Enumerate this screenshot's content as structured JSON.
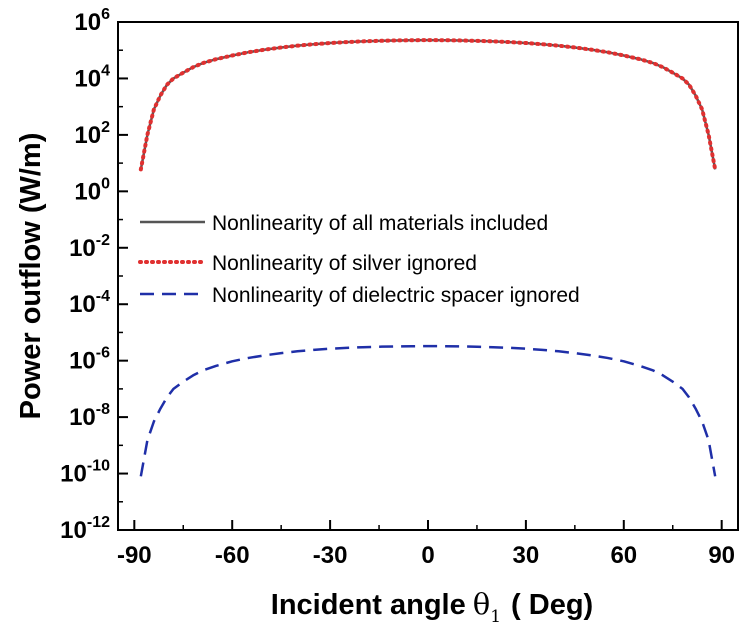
{
  "chart_data": {
    "type": "line",
    "xlabel": "Incident angle",
    "xlabel_symbol": "θ",
    "xlabel_subscript": "1",
    "xlabel_unit": "( Deg)",
    "ylabel": "Power outflow (W/m)",
    "xlim": [
      -95,
      95
    ],
    "x_ticks": [
      -90,
      -60,
      -30,
      0,
      30,
      60,
      90
    ],
    "x_tick_labels": [
      "-90",
      "-60",
      "-30",
      "0",
      "30",
      "60",
      "90"
    ],
    "y_scale": "log",
    "ylim": [
      1e-12,
      1000000.0
    ],
    "y_tick_exponents": [
      -12,
      -10,
      -8,
      -6,
      -4,
      -2,
      0,
      2,
      4,
      6
    ],
    "y_tick_base": "10",
    "y_tick_exponent_labels": [
      "-12",
      "-10",
      "-8",
      "-6",
      "-4",
      "-2",
      "0",
      "2",
      "4",
      "6"
    ],
    "grid": false,
    "legend_position": "middle-left",
    "x": [
      -88,
      -86,
      -84,
      -82,
      -80,
      -78,
      -75,
      -72,
      -69,
      -65,
      -60,
      -55,
      -50,
      -45,
      -40,
      -35,
      -30,
      -25,
      -20,
      -15,
      -10,
      -5,
      0,
      5,
      10,
      15,
      20,
      25,
      30,
      35,
      40,
      45,
      50,
      55,
      60,
      65,
      69,
      72,
      75,
      78,
      80,
      82,
      84,
      86,
      88
    ],
    "series": [
      {
        "name": "Nonlinearity of all materials included",
        "color": "#555555",
        "dash": "solid",
        "values": [
          6,
          100,
          800,
          2500,
          6000,
          10000,
          16000,
          25000,
          35000,
          48000,
          65000,
          85000,
          105000,
          125000,
          145000,
          163000,
          180000,
          194000,
          206000,
          215000,
          222000,
          226000,
          228000,
          226000,
          222000,
          215000,
          206000,
          194000,
          180000,
          163000,
          145000,
          125000,
          105000,
          85000,
          65000,
          48000,
          35000,
          25000,
          16000,
          10000,
          6000,
          2500,
          800,
          100,
          6
        ]
      },
      {
        "name": "Nonlinearity of silver ignored",
        "color": "#e03030",
        "dash": "dotted",
        "values": [
          6,
          100,
          800,
          2500,
          6000,
          10000,
          16000,
          25000,
          35000,
          48000,
          65000,
          85000,
          105000,
          125000,
          145000,
          163000,
          180000,
          194000,
          206000,
          215000,
          222000,
          226000,
          228000,
          226000,
          222000,
          215000,
          206000,
          194000,
          180000,
          163000,
          145000,
          125000,
          105000,
          85000,
          65000,
          48000,
          35000,
          25000,
          16000,
          10000,
          6000,
          2500,
          800,
          100,
          6
        ]
      },
      {
        "name": "Nonlinearity of dielectric spacer ignored",
        "color": "#1f2fa8",
        "dash": "dashed",
        "values": [
          8e-11,
          1.5e-09,
          7e-09,
          2e-08,
          5e-08,
          1e-07,
          1.8e-07,
          3e-07,
          4.5e-07,
          6.5e-07,
          9.5e-07,
          1.25e-06,
          1.55e-06,
          1.85e-06,
          2.15e-06,
          2.42e-06,
          2.65e-06,
          2.85e-06,
          3e-06,
          3.12e-06,
          3.2e-06,
          3.25e-06,
          3.27e-06,
          3.25e-06,
          3.2e-06,
          3.12e-06,
          3e-06,
          2.85e-06,
          2.65e-06,
          2.42e-06,
          2.15e-06,
          1.85e-06,
          1.55e-06,
          1.25e-06,
          9.5e-07,
          6.5e-07,
          4.5e-07,
          3e-07,
          1.8e-07,
          1e-07,
          5e-08,
          2e-08,
          7e-09,
          1.5e-09,
          8e-11
        ]
      }
    ]
  }
}
